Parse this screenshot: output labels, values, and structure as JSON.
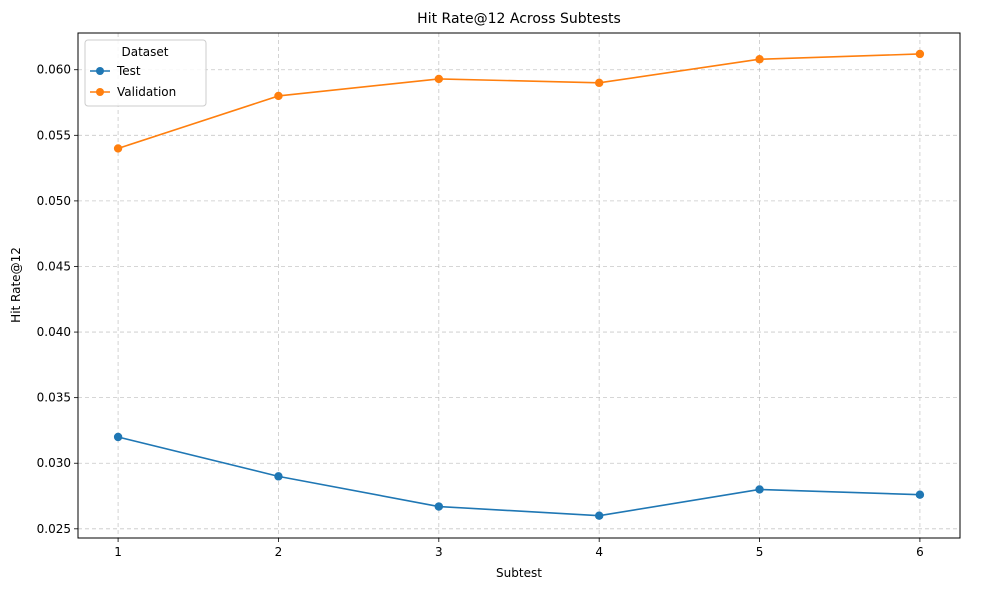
{
  "chart_data": {
    "type": "line",
    "title": "Hit Rate@12 Across Subtests",
    "xlabel": "Subtest",
    "ylabel": "Hit Rate@12",
    "x": [
      1,
      2,
      3,
      4,
      5,
      6
    ],
    "x_ticks": [
      "1",
      "2",
      "3",
      "4",
      "5",
      "6"
    ],
    "y_ticks": [
      "0.025",
      "0.030",
      "0.035",
      "0.040",
      "0.045",
      "0.050",
      "0.055",
      "0.060"
    ],
    "y_tick_values": [
      0.025,
      0.03,
      0.035,
      0.04,
      0.045,
      0.05,
      0.055,
      0.06
    ],
    "xlim": [
      0.75,
      6.25
    ],
    "ylim": [
      0.0243,
      0.0628
    ],
    "grid": true,
    "legend_title": "Dataset",
    "legend_position": "upper-left",
    "series": [
      {
        "name": "Test",
        "color": "#1f77b4",
        "marker": "circle",
        "values": [
          0.032,
          0.029,
          0.0267,
          0.026,
          0.028,
          0.0276
        ]
      },
      {
        "name": "Validation",
        "color": "#ff7f0e",
        "marker": "circle",
        "values": [
          0.054,
          0.058,
          0.0593,
          0.059,
          0.0608,
          0.0612
        ]
      }
    ]
  }
}
